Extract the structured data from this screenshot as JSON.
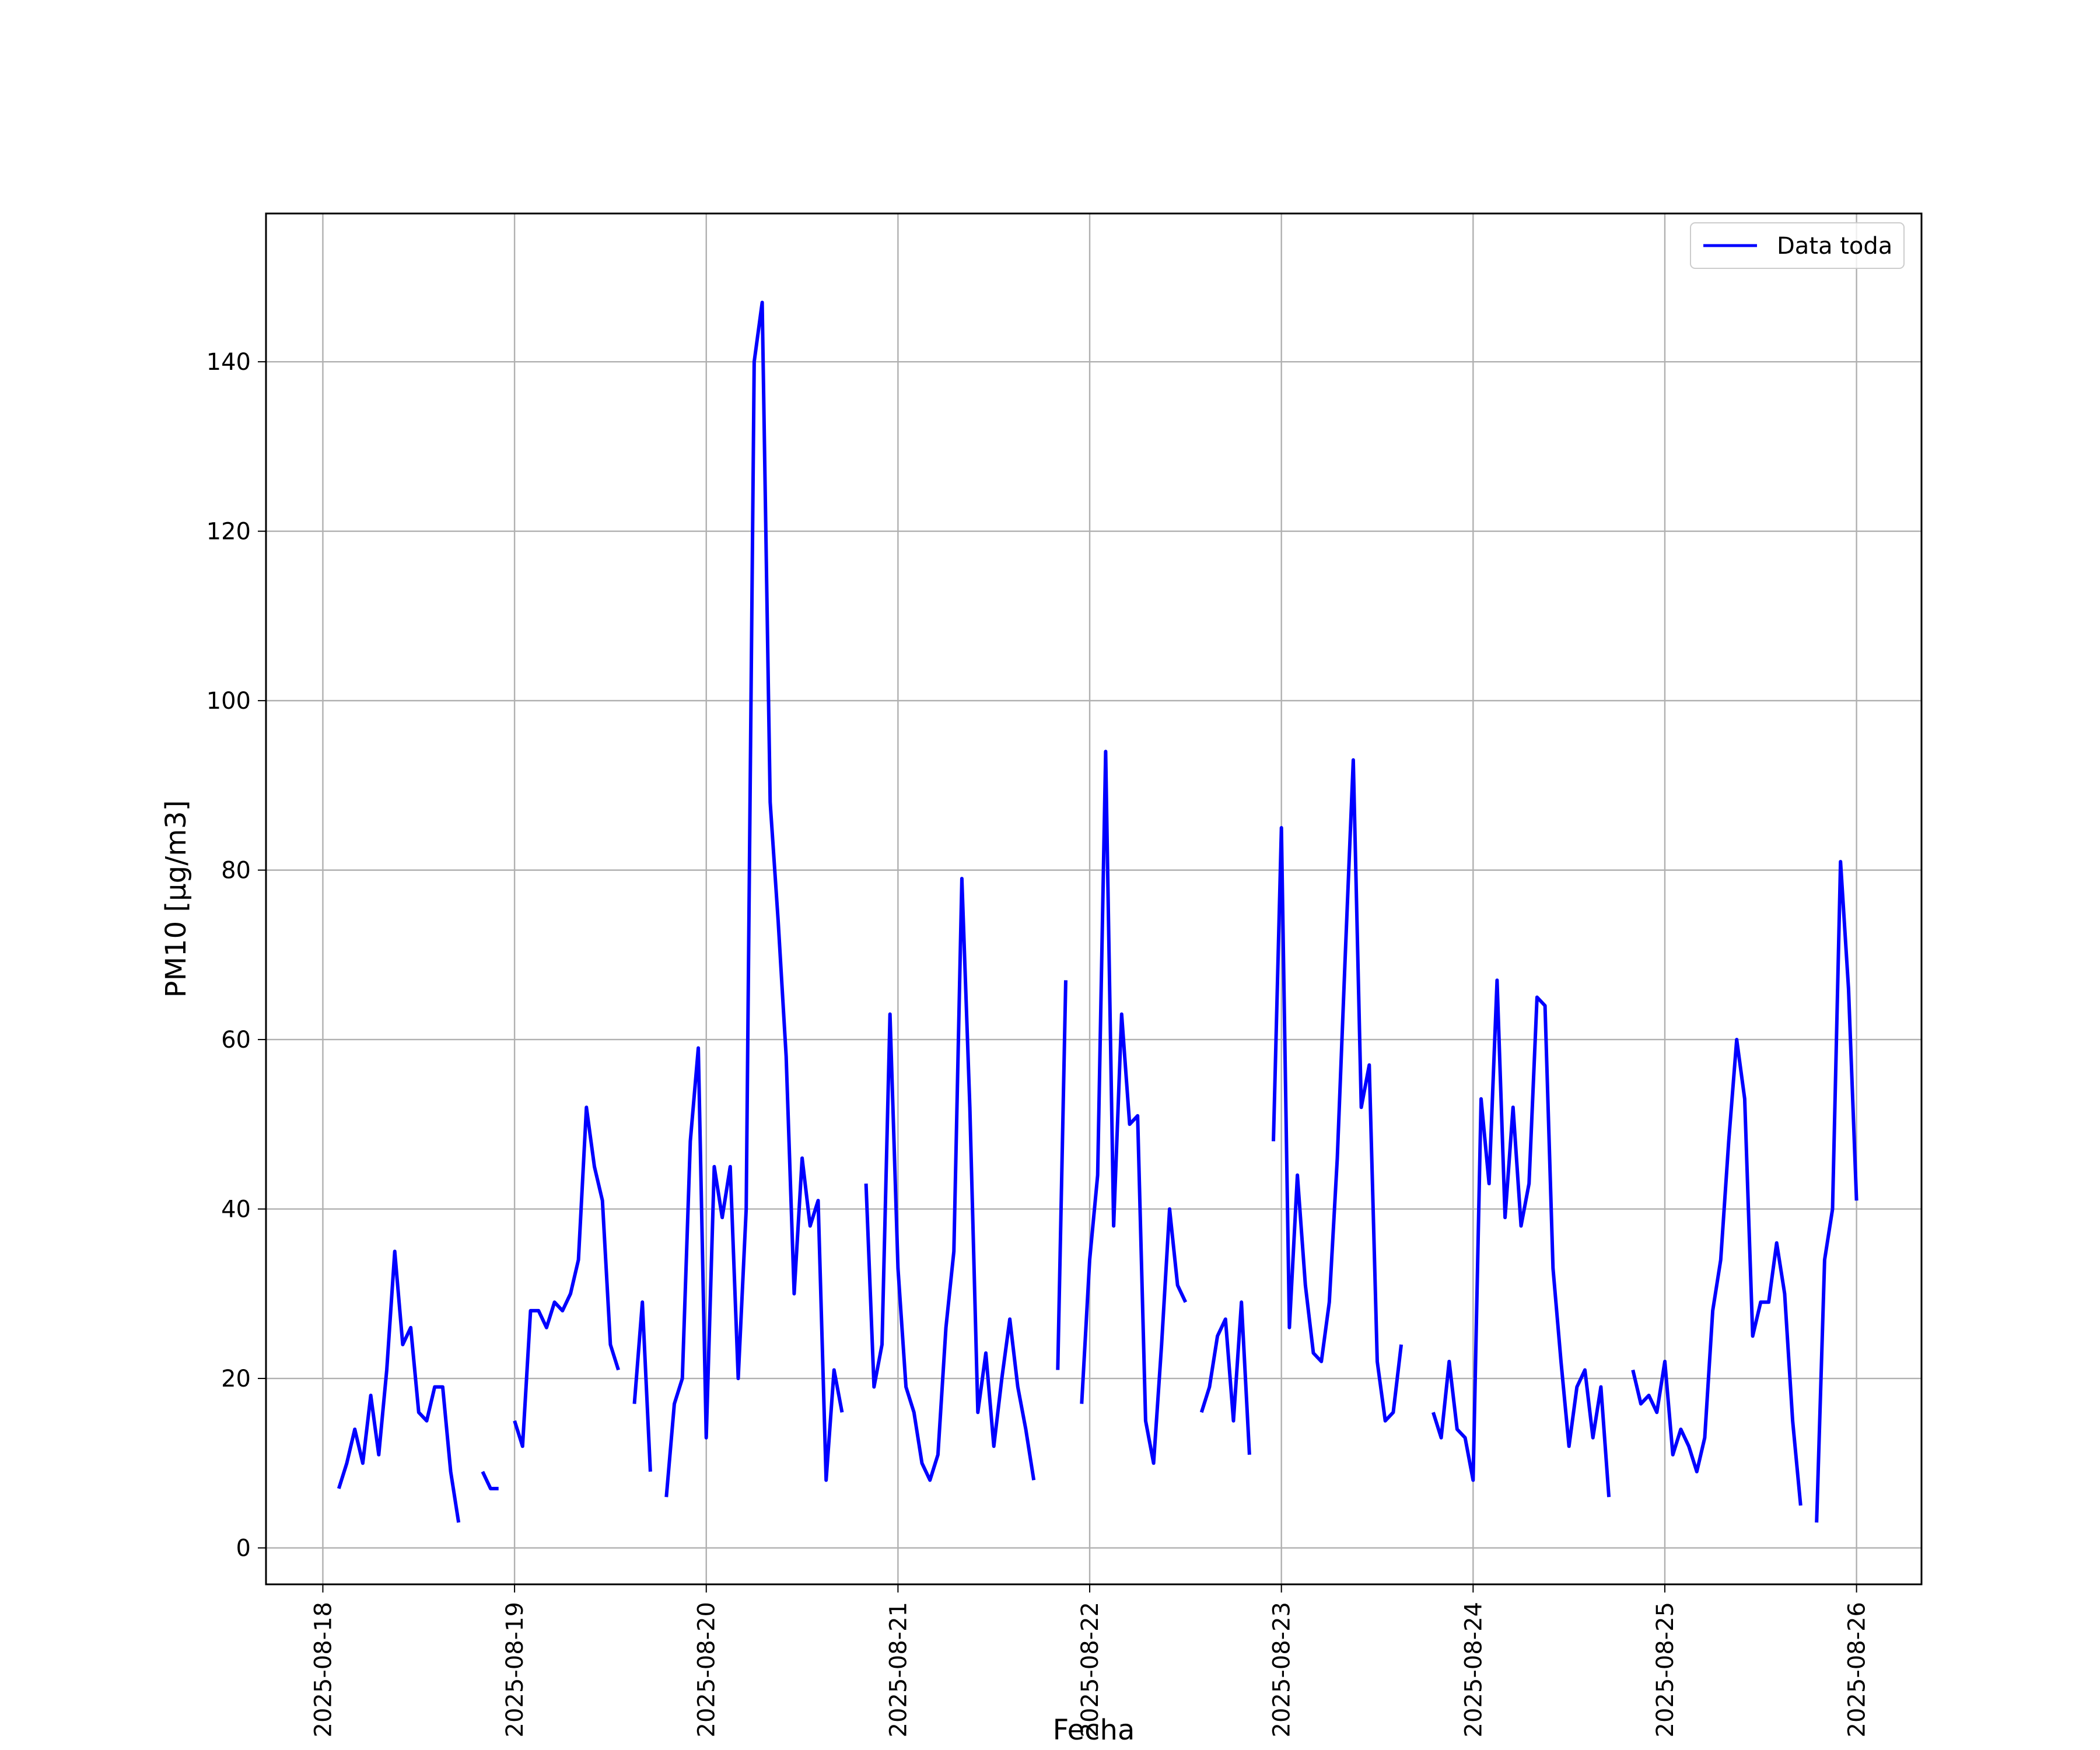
{
  "chart_data": {
    "type": "line",
    "xlabel": "Fecha",
    "ylabel": "PM10 [μg/m3]",
    "ylim": [
      -4.3,
      157.5
    ],
    "xlim": [
      "2025-08-17T16:53",
      "2025-08-26T08:08"
    ],
    "x_tick_labels": [
      "2025-08-18",
      "2025-08-19",
      "2025-08-20",
      "2025-08-21",
      "2025-08-22",
      "2025-08-23",
      "2025-08-24",
      "2025-08-25",
      "2025-08-26"
    ],
    "y_tick_labels": [
      "0",
      "20",
      "40",
      "60",
      "80",
      "100",
      "120",
      "140"
    ],
    "grid": true,
    "legend_position": "top-right",
    "series": [
      {
        "name": "Data toda",
        "color": "#0000ff",
        "segments": [
          [
            [
              "2025-08-18T02:00",
              7
            ],
            [
              "2025-08-18T03:00",
              10
            ],
            [
              "2025-08-18T04:00",
              14
            ],
            [
              "2025-08-18T05:00",
              10
            ],
            [
              "2025-08-18T06:00",
              18
            ],
            [
              "2025-08-18T07:00",
              11
            ],
            [
              "2025-08-18T08:00",
              21
            ],
            [
              "2025-08-18T09:00",
              35
            ],
            [
              "2025-08-18T10:00",
              24
            ],
            [
              "2025-08-18T11:00",
              26
            ],
            [
              "2025-08-18T12:00",
              16
            ],
            [
              "2025-08-18T13:00",
              15
            ],
            [
              "2025-08-18T14:00",
              19
            ],
            [
              "2025-08-18T15:00",
              19
            ],
            [
              "2025-08-18T16:00",
              9
            ],
            [
              "2025-08-18T17:00",
              3
            ]
          ],
          [
            [
              "2025-08-18T20:00",
              9
            ],
            [
              "2025-08-18T21:00",
              7
            ],
            [
              "2025-08-18T22:00",
              7
            ]
          ],
          [
            [
              "2025-08-19T00:00",
              15
            ],
            [
              "2025-08-19T01:00",
              12
            ],
            [
              "2025-08-19T02:00",
              28
            ],
            [
              "2025-08-19T03:00",
              28
            ],
            [
              "2025-08-19T04:00",
              26
            ],
            [
              "2025-08-19T05:00",
              29
            ],
            [
              "2025-08-19T06:00",
              28
            ],
            [
              "2025-08-19T07:00",
              30
            ],
            [
              "2025-08-19T08:00",
              34
            ],
            [
              "2025-08-19T09:00",
              52
            ],
            [
              "2025-08-19T10:00",
              45
            ],
            [
              "2025-08-19T11:00",
              41
            ],
            [
              "2025-08-19T12:00",
              24
            ],
            [
              "2025-08-19T13:00",
              21
            ]
          ],
          [
            [
              "2025-08-19T15:00",
              17
            ],
            [
              "2025-08-19T16:00",
              29
            ],
            [
              "2025-08-19T17:00",
              9
            ]
          ],
          [
            [
              "2025-08-19T19:00",
              6
            ],
            [
              "2025-08-19T20:00",
              17
            ],
            [
              "2025-08-19T21:00",
              20
            ],
            [
              "2025-08-19T22:00",
              48
            ],
            [
              "2025-08-19T23:00",
              59
            ],
            [
              "2025-08-20T00:00",
              13
            ],
            [
              "2025-08-20T01:00",
              45
            ],
            [
              "2025-08-20T02:00",
              39
            ],
            [
              "2025-08-20T03:00",
              45
            ],
            [
              "2025-08-20T04:00",
              20
            ],
            [
              "2025-08-20T05:00",
              40
            ],
            [
              "2025-08-20T06:00",
              140
            ],
            [
              "2025-08-20T07:00",
              147
            ],
            [
              "2025-08-20T08:00",
              88
            ],
            [
              "2025-08-20T09:00",
              74
            ],
            [
              "2025-08-20T10:00",
              58
            ],
            [
              "2025-08-20T11:00",
              30
            ],
            [
              "2025-08-20T12:00",
              46
            ],
            [
              "2025-08-20T13:00",
              38
            ],
            [
              "2025-08-20T14:00",
              41
            ],
            [
              "2025-08-20T15:00",
              8
            ],
            [
              "2025-08-20T16:00",
              21
            ],
            [
              "2025-08-20T17:00",
              16
            ]
          ],
          [
            [
              "2025-08-20T20:00",
              43
            ],
            [
              "2025-08-20T21:00",
              19
            ],
            [
              "2025-08-20T22:00",
              24
            ],
            [
              "2025-08-20T23:00",
              63
            ],
            [
              "2025-08-21T00:00",
              33
            ],
            [
              "2025-08-21T01:00",
              19
            ],
            [
              "2025-08-21T02:00",
              16
            ],
            [
              "2025-08-21T03:00",
              10
            ],
            [
              "2025-08-21T04:00",
              8
            ],
            [
              "2025-08-21T05:00",
              11
            ],
            [
              "2025-08-21T06:00",
              26
            ],
            [
              "2025-08-21T07:00",
              35
            ],
            [
              "2025-08-21T08:00",
              79
            ],
            [
              "2025-08-21T09:00",
              52
            ],
            [
              "2025-08-21T10:00",
              16
            ],
            [
              "2025-08-21T11:00",
              23
            ],
            [
              "2025-08-21T12:00",
              12
            ],
            [
              "2025-08-21T13:00",
              20
            ],
            [
              "2025-08-21T14:00",
              27
            ],
            [
              "2025-08-21T15:00",
              19
            ],
            [
              "2025-08-21T16:00",
              14
            ],
            [
              "2025-08-21T17:00",
              8
            ]
          ],
          [
            [
              "2025-08-21T20:00",
              21
            ],
            [
              "2025-08-21T21:00",
              67
            ]
          ],
          [
            [
              "2025-08-21T23:00",
              17
            ],
            [
              "2025-08-22T00:00",
              34
            ],
            [
              "2025-08-22T01:00",
              44
            ],
            [
              "2025-08-22T02:00",
              94
            ],
            [
              "2025-08-22T03:00",
              38
            ],
            [
              "2025-08-22T04:00",
              63
            ],
            [
              "2025-08-22T05:00",
              50
            ],
            [
              "2025-08-22T06:00",
              51
            ],
            [
              "2025-08-22T07:00",
              15
            ],
            [
              "2025-08-22T08:00",
              10
            ],
            [
              "2025-08-22T09:00",
              24
            ],
            [
              "2025-08-22T10:00",
              40
            ],
            [
              "2025-08-22T11:00",
              31
            ],
            [
              "2025-08-22T12:00",
              29
            ]
          ],
          [
            [
              "2025-08-22T14:00",
              16
            ],
            [
              "2025-08-22T15:00",
              19
            ],
            [
              "2025-08-22T16:00",
              25
            ],
            [
              "2025-08-22T17:00",
              27
            ],
            [
              "2025-08-22T18:00",
              15
            ],
            [
              "2025-08-22T19:00",
              29
            ],
            [
              "2025-08-22T20:00",
              11
            ]
          ],
          [
            [
              "2025-08-22T23:00",
              48
            ],
            [
              "2025-08-23T00:00",
              85
            ],
            [
              "2025-08-23T01:00",
              26
            ],
            [
              "2025-08-23T02:00",
              44
            ],
            [
              "2025-08-23T03:00",
              31
            ],
            [
              "2025-08-23T04:00",
              23
            ],
            [
              "2025-08-23T05:00",
              22
            ],
            [
              "2025-08-23T06:00",
              29
            ],
            [
              "2025-08-23T07:00",
              46
            ],
            [
              "2025-08-23T08:00",
              70
            ],
            [
              "2025-08-23T09:00",
              93
            ],
            [
              "2025-08-23T10:00",
              52
            ],
            [
              "2025-08-23T11:00",
              57
            ],
            [
              "2025-08-23T12:00",
              22
            ],
            [
              "2025-08-23T13:00",
              15
            ],
            [
              "2025-08-23T14:00",
              16
            ],
            [
              "2025-08-23T15:00",
              24
            ]
          ],
          [
            [
              "2025-08-23T19:00",
              16
            ],
            [
              "2025-08-23T20:00",
              13
            ],
            [
              "2025-08-23T21:00",
              22
            ],
            [
              "2025-08-23T22:00",
              14
            ],
            [
              "2025-08-23T23:00",
              13
            ],
            [
              "2025-08-24T00:00",
              8
            ],
            [
              "2025-08-24T01:00",
              53
            ],
            [
              "2025-08-24T02:00",
              43
            ],
            [
              "2025-08-24T03:00",
              67
            ],
            [
              "2025-08-24T04:00",
              39
            ],
            [
              "2025-08-24T05:00",
              52
            ],
            [
              "2025-08-24T06:00",
              38
            ],
            [
              "2025-08-24T07:00",
              43
            ],
            [
              "2025-08-24T08:00",
              65
            ],
            [
              "2025-08-24T09:00",
              64
            ],
            [
              "2025-08-24T10:00",
              33
            ],
            [
              "2025-08-24T11:00",
              22
            ],
            [
              "2025-08-24T12:00",
              12
            ],
            [
              "2025-08-24T13:00",
              19
            ],
            [
              "2025-08-24T14:00",
              21
            ],
            [
              "2025-08-24T15:00",
              13
            ],
            [
              "2025-08-24T16:00",
              19
            ],
            [
              "2025-08-24T17:00",
              6
            ]
          ],
          [
            [
              "2025-08-24T20:00",
              21
            ],
            [
              "2025-08-24T21:00",
              17
            ],
            [
              "2025-08-24T22:00",
              18
            ],
            [
              "2025-08-24T23:00",
              16
            ],
            [
              "2025-08-25T00:00",
              22
            ],
            [
              "2025-08-25T01:00",
              11
            ],
            [
              "2025-08-25T02:00",
              14
            ],
            [
              "2025-08-25T03:00",
              12
            ],
            [
              "2025-08-25T04:00",
              9
            ],
            [
              "2025-08-25T05:00",
              13
            ],
            [
              "2025-08-25T06:00",
              28
            ],
            [
              "2025-08-25T07:00",
              34
            ],
            [
              "2025-08-25T08:00",
              48
            ],
            [
              "2025-08-25T09:00",
              60
            ],
            [
              "2025-08-25T10:00",
              53
            ],
            [
              "2025-08-25T11:00",
              25
            ],
            [
              "2025-08-25T12:00",
              29
            ],
            [
              "2025-08-25T13:00",
              29
            ],
            [
              "2025-08-25T14:00",
              36
            ],
            [
              "2025-08-25T15:00",
              30
            ],
            [
              "2025-08-25T16:00",
              15
            ],
            [
              "2025-08-25T17:00",
              5
            ]
          ],
          [
            [
              "2025-08-25T19:00",
              3
            ],
            [
              "2025-08-25T20:00",
              34
            ],
            [
              "2025-08-25T21:00",
              40
            ],
            [
              "2025-08-25T22:00",
              81
            ],
            [
              "2025-08-25T23:00",
              66
            ],
            [
              "2025-08-26T00:00",
              41
            ]
          ]
        ]
      }
    ]
  }
}
